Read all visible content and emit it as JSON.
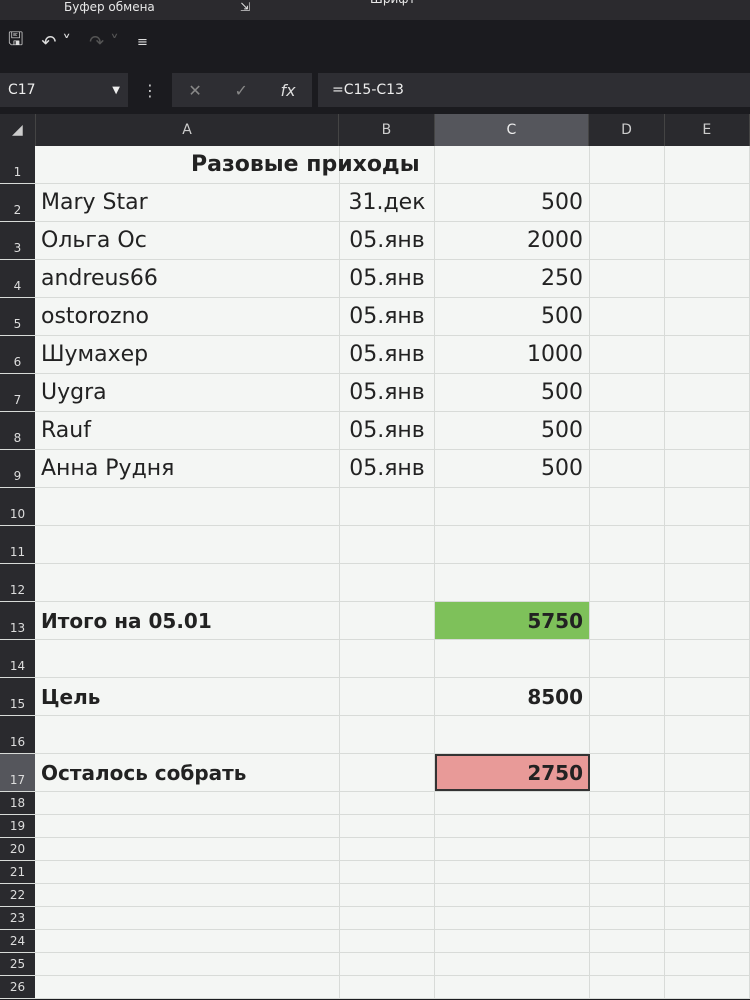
{
  "ribbon": {
    "clipboard": "Буфер обмена",
    "font": "Шрифт"
  },
  "qat": {
    "save": "save-icon",
    "undo": "undo-icon",
    "redo": "redo-icon",
    "customize": "customize-icon"
  },
  "formula_bar": {
    "name_box": "C17",
    "cancel": "✕",
    "enter": "✓",
    "fx": "fx",
    "formula": "=C15-C13"
  },
  "columns": [
    "A",
    "B",
    "C",
    "D",
    "E"
  ],
  "selected_column": "C",
  "rows": [
    {
      "n": "1",
      "a": "",
      "b": "",
      "c": "",
      "title": "Разовые приходы"
    },
    {
      "n": "2",
      "a": "Mary Star",
      "b": "31.дек",
      "c": "500"
    },
    {
      "n": "3",
      "a": "Ольга Ос",
      "b": "05.янв",
      "c": "2000"
    },
    {
      "n": "4",
      "a": "andreus66",
      "b": "05.янв",
      "c": "250"
    },
    {
      "n": "5",
      "a": "ostorozno",
      "b": "05.янв",
      "c": "500"
    },
    {
      "n": "6",
      "a": "Шумахер",
      "b": "05.янв",
      "c": "1000"
    },
    {
      "n": "7",
      "a": "Uygra",
      "b": "05.янв",
      "c": "500"
    },
    {
      "n": "8",
      "a": "Rauf",
      "b": "05.янв",
      "c": "500"
    },
    {
      "n": "9",
      "a": "Анна Рудня",
      "b": "05.янв",
      "c": "500"
    },
    {
      "n": "10",
      "a": "",
      "b": "",
      "c": ""
    },
    {
      "n": "11",
      "a": "",
      "b": "",
      "c": ""
    },
    {
      "n": "12",
      "a": "",
      "b": "",
      "c": ""
    },
    {
      "n": "13",
      "a": "Итого на 05.01",
      "b": "",
      "c": "5750",
      "bold": true,
      "fill": "#7ec15a"
    },
    {
      "n": "14",
      "a": "",
      "b": "",
      "c": ""
    },
    {
      "n": "15",
      "a": "Цель",
      "b": "",
      "c": "8500",
      "bold": true
    },
    {
      "n": "16",
      "a": "",
      "b": "",
      "c": ""
    },
    {
      "n": "17",
      "a": "Осталось собрать",
      "b": "",
      "c": "2750",
      "bold": true,
      "fill": "#e89a98",
      "selected": true
    },
    {
      "n": "18"
    },
    {
      "n": "19"
    },
    {
      "n": "20"
    },
    {
      "n": "21"
    },
    {
      "n": "22"
    },
    {
      "n": "23"
    },
    {
      "n": "24"
    },
    {
      "n": "25"
    },
    {
      "n": "26"
    }
  ]
}
